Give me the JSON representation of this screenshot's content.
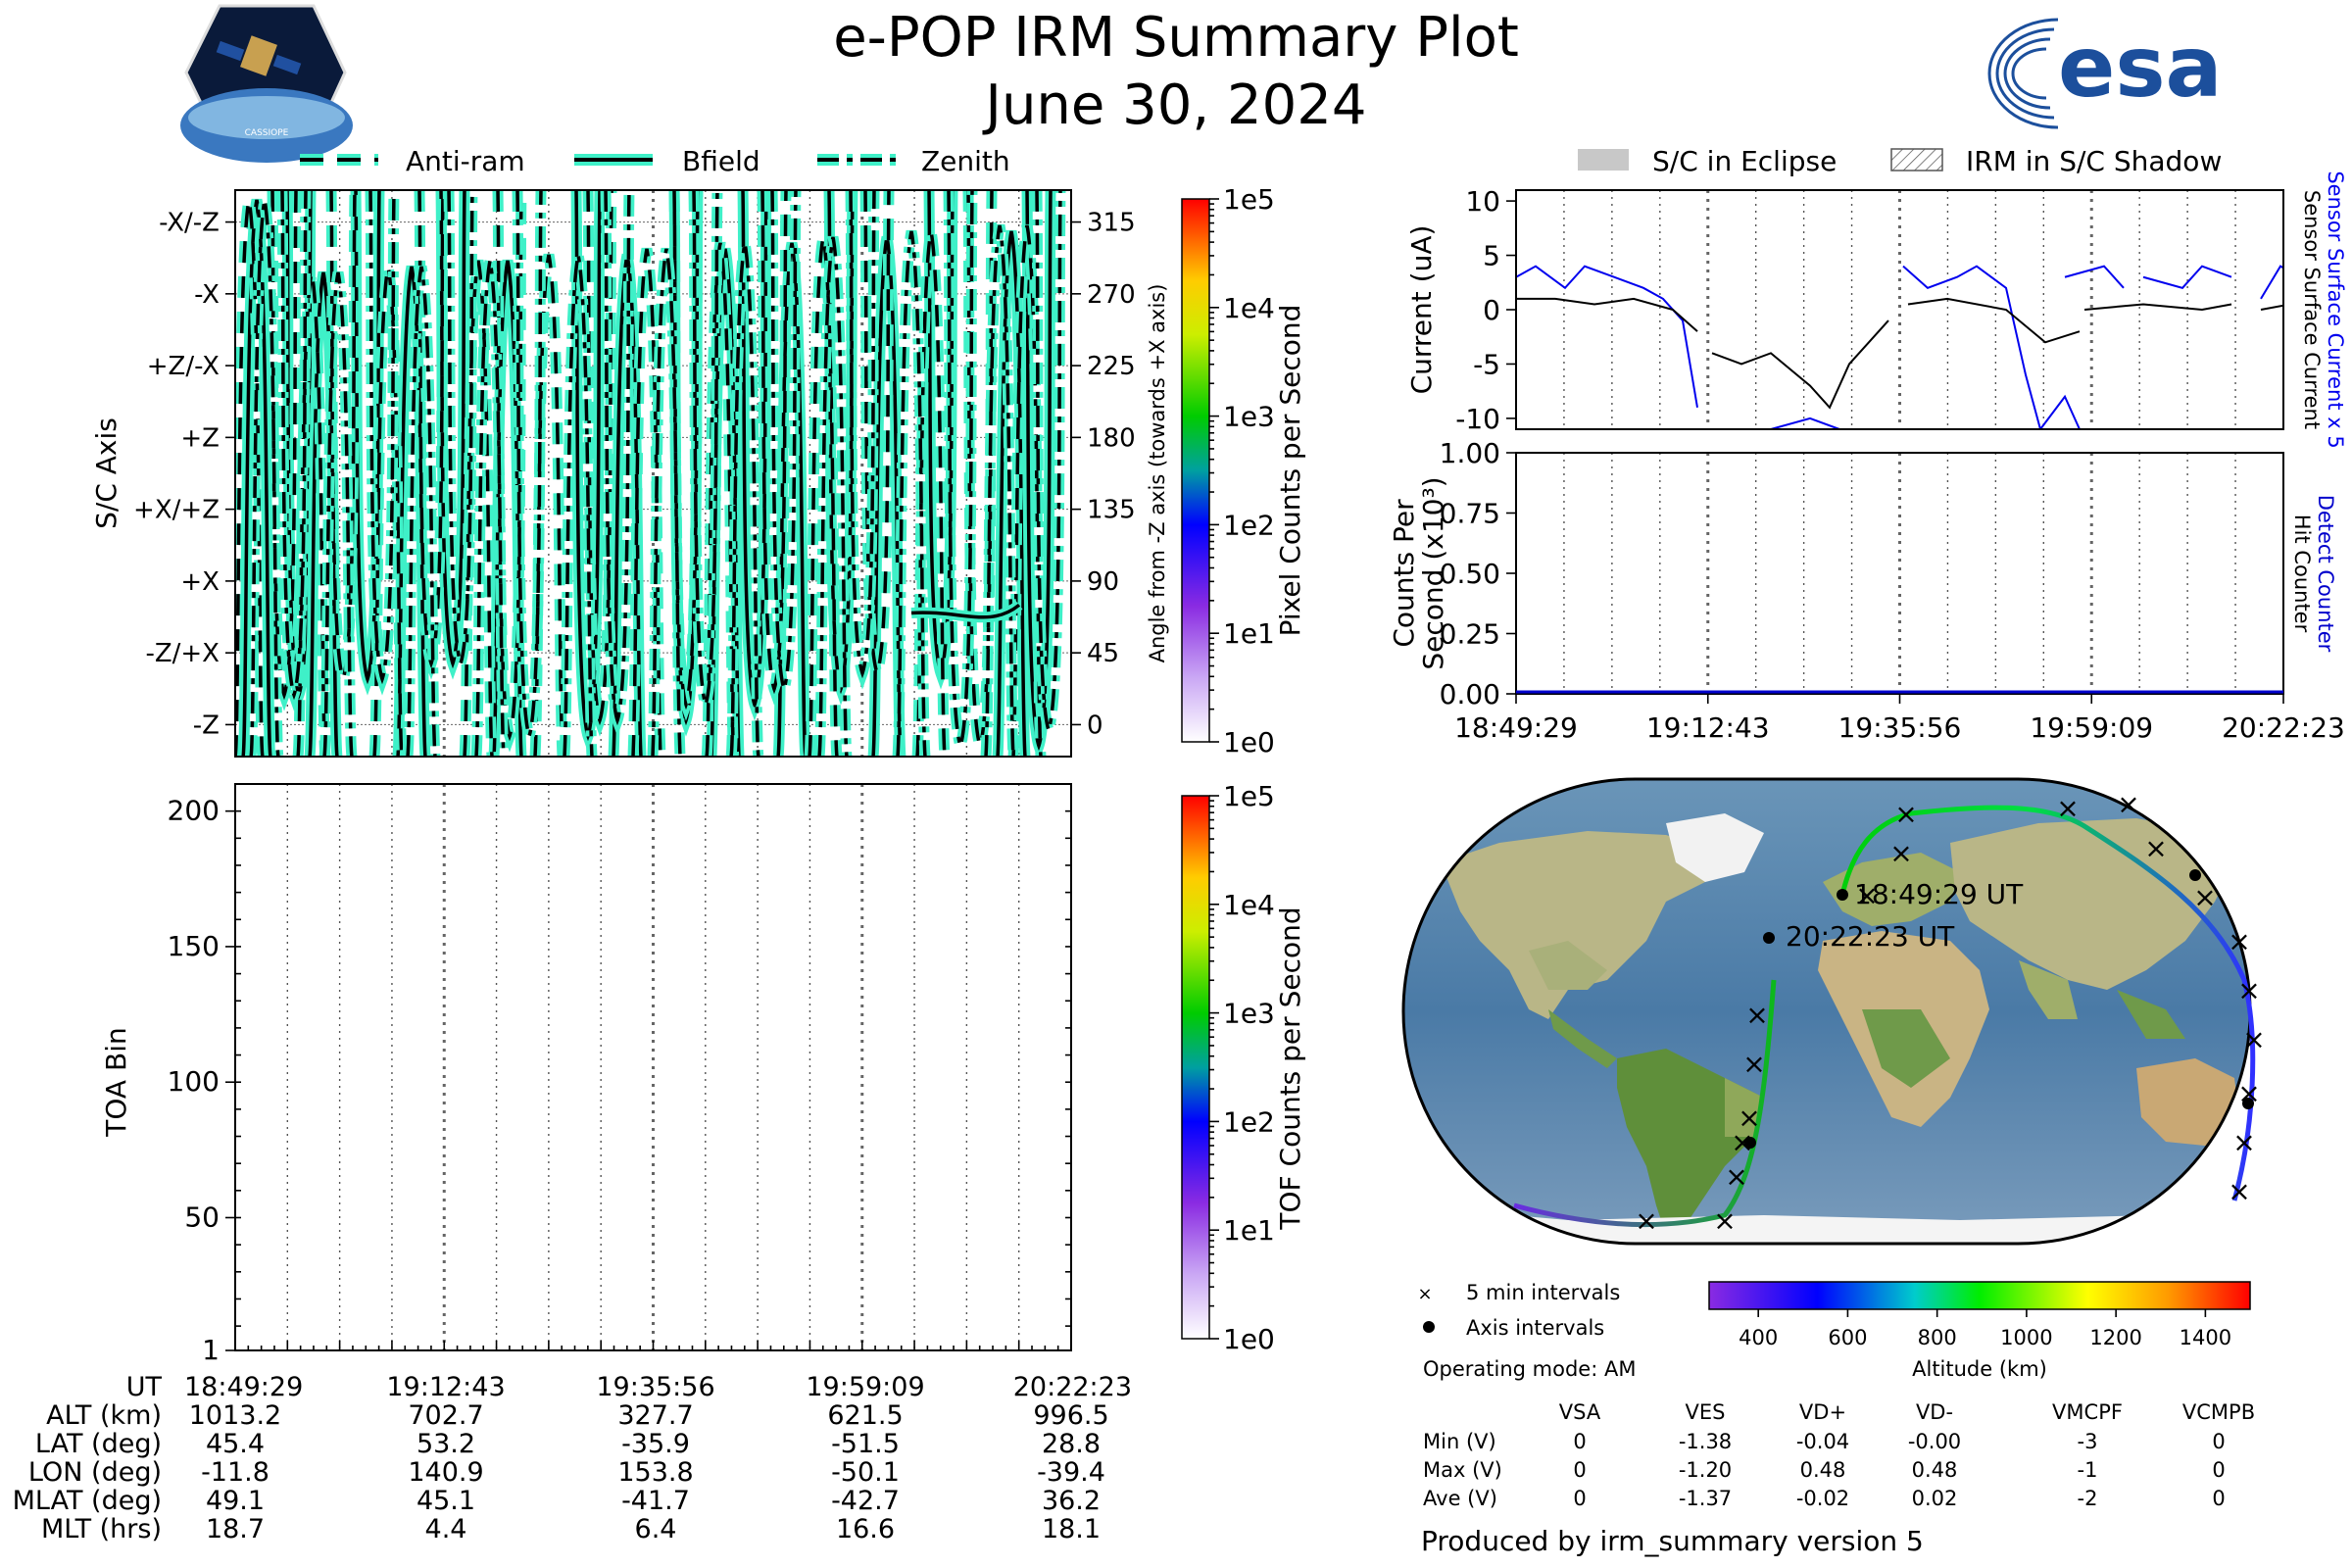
{
  "header": {
    "title": "e-POP IRM Summary Plot",
    "date": "June 30, 2024",
    "cassiope_logo_text": "CASSIOPE",
    "esa_logo_text": "esa"
  },
  "colors": {
    "trace_fill": "#3ff0c8",
    "trace_edge": "#000000",
    "sensor_current_blue": "#0000ee",
    "sensor_current_black": "#000000",
    "detect_counter_blue": "#0000cc",
    "eclipse_gray": "#c8c8c8"
  },
  "legend_left": {
    "items": [
      {
        "label": "Anti-ram",
        "style": "dashed"
      },
      {
        "label": "Bfield",
        "style": "solid"
      },
      {
        "label": "Zenith",
        "style": "dashdot"
      }
    ]
  },
  "legend_right": {
    "items": [
      {
        "label": "S/C in Eclipse",
        "style": "solid-gray"
      },
      {
        "label": "IRM in S/C Shadow",
        "style": "hatched"
      }
    ]
  },
  "time_axis": {
    "ticks": [
      "18:49:29",
      "19:12:43",
      "19:35:56",
      "19:59:09",
      "20:22:23"
    ]
  },
  "chart_data": [
    {
      "id": "sc-axis",
      "type": "line",
      "ylabel_left": "S/C Axis",
      "ylabel_right": "Angle from -Z axis (towards +X axis)",
      "left_ticks": [
        "-X/-Z",
        "-X",
        "+Z/-X",
        "+Z",
        "+X/+Z",
        "+X",
        "-Z/+X",
        "-Z"
      ],
      "right_ticks": [
        "315",
        "270",
        "225",
        "180",
        "135",
        "90",
        "45",
        "0"
      ],
      "ylim": [
        -20,
        335
      ],
      "series": [
        {
          "name": "Anti-ram",
          "style": "dashed"
        },
        {
          "name": "Bfield",
          "style": "solid"
        },
        {
          "name": "Zenith",
          "style": "dashdot"
        }
      ],
      "colorbar": {
        "label": "Pixel Counts per Second",
        "scale": "log",
        "ticks": [
          "1e0",
          "1e1",
          "1e2",
          "1e3",
          "1e4",
          "1e5"
        ]
      }
    },
    {
      "id": "toa-bin",
      "type": "heatmap",
      "ylabel": "TOA Bin",
      "yticks": [
        "1",
        "50",
        "100",
        "150",
        "200"
      ],
      "ylim": [
        1,
        210
      ],
      "colorbar": {
        "label": "TOF Counts per Second",
        "scale": "log",
        "ticks": [
          "1e0",
          "1e1",
          "1e2",
          "1e3",
          "1e4",
          "1e5"
        ]
      }
    },
    {
      "id": "sensor-current",
      "type": "line",
      "ylabel": "Current (uA)",
      "yticks": [
        "10",
        "5",
        "0",
        "-5",
        "-10"
      ],
      "ylim": [
        -11,
        11
      ],
      "right_label_blue": "Sensor Surface Current x 5",
      "right_label_black": "Sensor Surface Current",
      "series": [
        {
          "name": "Sensor Surface Current x 5",
          "color": "#0000ee"
        },
        {
          "name": "Sensor Surface Current",
          "color": "#000000"
        }
      ]
    },
    {
      "id": "counts",
      "type": "line",
      "ylabel_line1": "Counts Per",
      "ylabel_line2": "Second (x10³)",
      "yticks": [
        "1.00",
        "0.75",
        "0.50",
        "0.25",
        "0.00"
      ],
      "ylim": [
        0,
        1
      ],
      "right_label_blue": "Detect Counter",
      "right_label_black": "Hit Counter",
      "series": [
        {
          "name": "Detect Counter",
          "values": [
            0,
            0,
            0,
            0,
            0
          ]
        },
        {
          "name": "Hit Counter",
          "values": [
            0,
            0,
            0,
            0,
            0
          ]
        }
      ]
    }
  ],
  "ephemeris": {
    "rows": [
      {
        "label": "UT",
        "values": [
          "18:49:29",
          "19:12:43",
          "19:35:56",
          "19:59:09",
          "20:22:23"
        ]
      },
      {
        "label": "ALT (km)",
        "values": [
          "1013.2",
          "702.7",
          "327.7",
          "621.5",
          "996.5"
        ]
      },
      {
        "label": "LAT (deg)",
        "values": [
          "45.4",
          "53.2",
          "-35.9",
          "-51.5",
          "28.8"
        ]
      },
      {
        "label": "LON (deg)",
        "values": [
          "-11.8",
          "140.9",
          "153.8",
          "-50.1",
          "-39.4"
        ]
      },
      {
        "label": "MLAT (deg)",
        "values": [
          "49.1",
          "45.1",
          "-41.7",
          "-42.7",
          "36.2"
        ]
      },
      {
        "label": "MLT (hrs)",
        "values": [
          "18.7",
          "4.4",
          "6.4",
          "16.6",
          "18.1"
        ]
      }
    ]
  },
  "map": {
    "start_label": "18:49:29 UT",
    "end_label": "20:22:23 UT",
    "legend_5min": "5 min intervals",
    "legend_axis": "Axis intervals",
    "operating_mode": "Operating mode: AM",
    "altitude_label": "Altitude (km)",
    "altitude_ticks": [
      "400",
      "600",
      "800",
      "1000",
      "1200",
      "1400"
    ]
  },
  "voltage_table": {
    "columns": [
      "VSA",
      "VES",
      "VD+",
      "VD-",
      "VMCPF",
      "VCMPB"
    ],
    "rows": [
      {
        "label": "Min (V)",
        "values": [
          "0",
          "-1.38",
          "-0.04",
          "-0.00",
          "-3",
          "0"
        ]
      },
      {
        "label": "Max (V)",
        "values": [
          "0",
          "-1.20",
          "0.48",
          "0.48",
          "-1",
          "0"
        ]
      },
      {
        "label": "Ave (V)",
        "values": [
          "0",
          "-1.37",
          "-0.02",
          "0.02",
          "-2",
          "0"
        ]
      }
    ]
  },
  "footer": {
    "produced_by": "Produced by irm_summary version 5"
  }
}
